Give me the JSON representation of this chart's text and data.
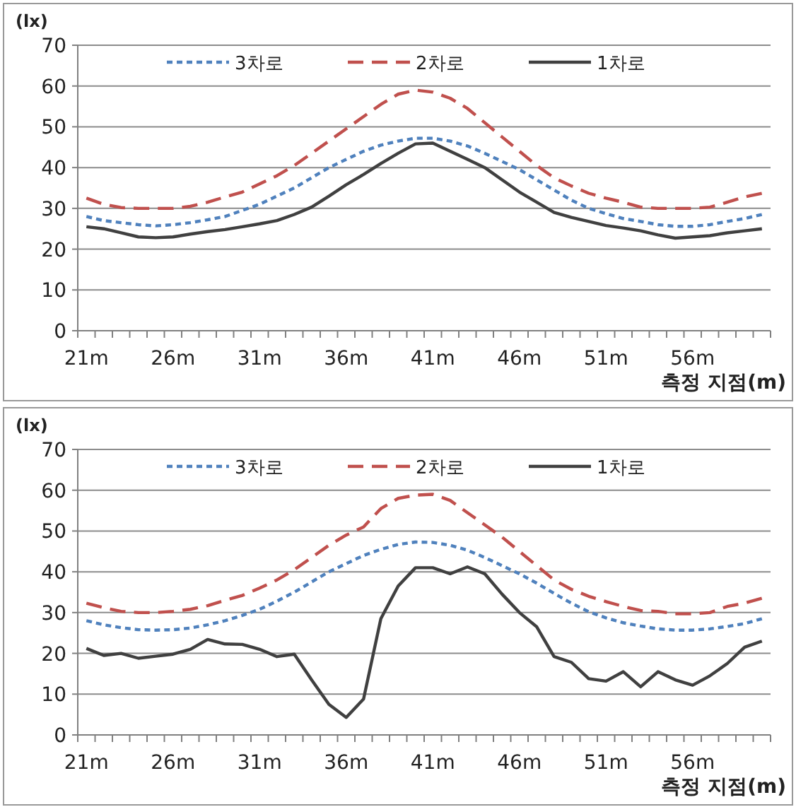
{
  "chart_data": [
    {
      "type": "line",
      "ylabel": "(lx)",
      "xlabel": "측정 지점(m)",
      "ylim": [
        0,
        70
      ],
      "yticks": [
        0,
        10,
        20,
        30,
        40,
        50,
        60,
        70
      ],
      "grid": "y",
      "legend": "top",
      "marker": "none",
      "categories": [
        "21m",
        null,
        null,
        null,
        null,
        "26m",
        null,
        null,
        null,
        null,
        "31m",
        null,
        null,
        null,
        null,
        "36m",
        null,
        null,
        null,
        null,
        "41m",
        null,
        null,
        null,
        null,
        "46m",
        null,
        null,
        null,
        null,
        "51m",
        null,
        null,
        null,
        null,
        "56m",
        null,
        null,
        null,
        null
      ],
      "series": [
        {
          "name": "3차로",
          "color": "#4f81bd",
          "line_style": "dotted",
          "values": [
            28,
            27,
            26.5,
            26,
            25.7,
            26,
            26.5,
            27.2,
            28,
            29.5,
            31,
            33,
            35,
            37.5,
            40,
            42,
            44,
            45.5,
            46.5,
            47.2,
            47.2,
            46.5,
            45.3,
            43.5,
            41.5,
            39.5,
            37,
            34.5,
            32,
            30,
            28.7,
            27.5,
            26.8,
            26,
            25.6,
            25.6,
            26,
            26.8,
            27.5,
            28.5
          ]
        },
        {
          "name": "2차로",
          "color": "#c0504d",
          "line_style": "dashed",
          "values": [
            32.5,
            31,
            30.2,
            30,
            30,
            30,
            30.5,
            31.5,
            32.8,
            34,
            36,
            38,
            40.5,
            43.5,
            46.5,
            49.5,
            52.5,
            55.5,
            58,
            59,
            58.5,
            57,
            54.5,
            51,
            47.5,
            44,
            40.5,
            37.5,
            35.5,
            33.7,
            32.5,
            31.5,
            30.3,
            30,
            30,
            30,
            30.3,
            31.5,
            32.8,
            33.7
          ]
        },
        {
          "name": "1차로",
          "color": "#404040",
          "line_style": "solid",
          "values": [
            25.5,
            25,
            24,
            23,
            22.8,
            23,
            23.7,
            24.3,
            24.8,
            25.5,
            26.2,
            27,
            28.5,
            30.3,
            33,
            35.8,
            38.3,
            41,
            43.5,
            45.8,
            46,
            44,
            42,
            40,
            37,
            34,
            31.5,
            29,
            27.8,
            26.8,
            25.8,
            25.2,
            24.5,
            23.5,
            22.7,
            23,
            23.3,
            24,
            24.5,
            25
          ]
        }
      ]
    },
    {
      "type": "line",
      "ylabel": "(lx)",
      "xlabel": "측정 지점(m)",
      "ylim": [
        0,
        70
      ],
      "yticks": [
        0,
        10,
        20,
        30,
        40,
        50,
        60,
        70
      ],
      "grid": "y",
      "legend": "top",
      "marker": "none",
      "categories": [
        "21m",
        null,
        null,
        null,
        null,
        "26m",
        null,
        null,
        null,
        null,
        "31m",
        null,
        null,
        null,
        null,
        "36m",
        null,
        null,
        null,
        null,
        "41m",
        null,
        null,
        null,
        null,
        "46m",
        null,
        null,
        null,
        null,
        "51m",
        null,
        null,
        null,
        null,
        "56m",
        null,
        null,
        null,
        null
      ],
      "series": [
        {
          "name": "3차로",
          "color": "#4f81bd",
          "line_style": "dotted",
          "values": [
            28,
            27,
            26.3,
            25.8,
            25.7,
            25.8,
            26.2,
            27,
            28,
            29.3,
            30.8,
            32.8,
            35,
            37.5,
            40,
            42,
            44,
            45.5,
            46.7,
            47.3,
            47.2,
            46.5,
            45.3,
            43.5,
            41.5,
            39.5,
            37.2,
            34.7,
            32.3,
            30.2,
            28.7,
            27.5,
            26.7,
            26,
            25.7,
            25.7,
            26,
            26.6,
            27.3,
            28.5
          ]
        },
        {
          "name": "2차로",
          "color": "#c0504d",
          "line_style": "dashed",
          "values": [
            32.3,
            31.2,
            30.3,
            30,
            30,
            30.3,
            30.8,
            31.7,
            33,
            34.2,
            36,
            38,
            40.5,
            43.5,
            46.5,
            49,
            51,
            55.5,
            58,
            58.8,
            59,
            57.5,
            54.5,
            51.5,
            48.5,
            45,
            41.5,
            38,
            35.7,
            34,
            32.7,
            31.5,
            30.5,
            30.3,
            29.7,
            29.7,
            30,
            31.5,
            32.3,
            33.5
          ]
        },
        {
          "name": "1차로",
          "color": "#404040",
          "line_style": "solid",
          "values": [
            21.2,
            19.5,
            20,
            18.8,
            19.3,
            19.8,
            21,
            23.4,
            22.3,
            22.2,
            21,
            19.2,
            19.8,
            13.5,
            7.5,
            4.3,
            8.8,
            28.5,
            36.5,
            41,
            41,
            39.5,
            41.2,
            39.5,
            34.5,
            30,
            26.5,
            19.2,
            17.8,
            13.8,
            13.2,
            15.5,
            11.8,
            15.5,
            13.5,
            12.2,
            14.5,
            17.5,
            21.5,
            23
          ]
        }
      ]
    }
  ]
}
